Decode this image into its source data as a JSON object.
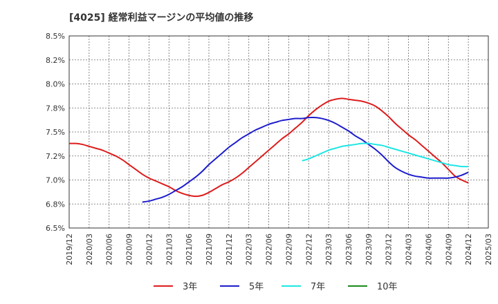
{
  "chart_data": {
    "type": "line",
    "title": "[4025]  経常利益マージンの平均値の推移",
    "xlabel": "",
    "ylabel": "",
    "y_ticks": [
      "6.5%",
      "6.8%",
      "7.0%",
      "7.2%",
      "7.5%",
      "7.8%",
      "8.0%",
      "8.2%",
      "8.5%"
    ],
    "ylim": [
      6.5,
      8.5
    ],
    "x_ticks": [
      "2019/12",
      "2020/03",
      "2020/06",
      "2020/09",
      "2020/12",
      "2021/03",
      "2021/06",
      "2021/09",
      "2021/12",
      "2022/03",
      "2022/06",
      "2022/09",
      "2022/12",
      "2023/03",
      "2023/06",
      "2023/09",
      "2023/12",
      "2024/03",
      "2024/06",
      "2024/09",
      "2024/12",
      "2025/03"
    ],
    "grid": true,
    "legend_position": "bottom",
    "series": [
      {
        "name": "3年",
        "color": "#dd1c1c",
        "points": [
          [
            "2019/12",
            7.38
          ],
          [
            "2020/01",
            7.38
          ],
          [
            "2020/02",
            7.37
          ],
          [
            "2020/03",
            7.35
          ],
          [
            "2020/04",
            7.33
          ],
          [
            "2020/05",
            7.31
          ],
          [
            "2020/06",
            7.28
          ],
          [
            "2020/07",
            7.25
          ],
          [
            "2020/08",
            7.21
          ],
          [
            "2020/09",
            7.16
          ],
          [
            "2020/10",
            7.11
          ],
          [
            "2020/11",
            7.06
          ],
          [
            "2020/12",
            7.02
          ],
          [
            "2021/01",
            6.99
          ],
          [
            "2021/02",
            6.96
          ],
          [
            "2021/03",
            6.93
          ],
          [
            "2021/04",
            6.89
          ],
          [
            "2021/05",
            6.86
          ],
          [
            "2021/06",
            6.84
          ],
          [
            "2021/07",
            6.83
          ],
          [
            "2021/08",
            6.84
          ],
          [
            "2021/09",
            6.87
          ],
          [
            "2021/10",
            6.91
          ],
          [
            "2021/11",
            6.95
          ],
          [
            "2021/12",
            6.98
          ],
          [
            "2022/01",
            7.02
          ],
          [
            "2022/02",
            7.07
          ],
          [
            "2022/03",
            7.13
          ],
          [
            "2022/04",
            7.19
          ],
          [
            "2022/05",
            7.25
          ],
          [
            "2022/06",
            7.31
          ],
          [
            "2022/07",
            7.37
          ],
          [
            "2022/08",
            7.43
          ],
          [
            "2022/09",
            7.48
          ],
          [
            "2022/10",
            7.54
          ],
          [
            "2022/11",
            7.6
          ],
          [
            "2022/12",
            7.67
          ],
          [
            "2023/01",
            7.73
          ],
          [
            "2023/02",
            7.78
          ],
          [
            "2023/03",
            7.82
          ],
          [
            "2023/04",
            7.84
          ],
          [
            "2023/05",
            7.85
          ],
          [
            "2023/06",
            7.84
          ],
          [
            "2023/07",
            7.83
          ],
          [
            "2023/08",
            7.82
          ],
          [
            "2023/09",
            7.8
          ],
          [
            "2023/10",
            7.77
          ],
          [
            "2023/11",
            7.72
          ],
          [
            "2023/12",
            7.66
          ],
          [
            "2024/01",
            7.59
          ],
          [
            "2024/02",
            7.53
          ],
          [
            "2024/03",
            7.47
          ],
          [
            "2024/04",
            7.42
          ],
          [
            "2024/05",
            7.36
          ],
          [
            "2024/06",
            7.3
          ],
          [
            "2024/07",
            7.24
          ],
          [
            "2024/08",
            7.18
          ],
          [
            "2024/09",
            7.11
          ],
          [
            "2024/10",
            7.04
          ],
          [
            "2024/11",
            7.0
          ],
          [
            "2024/12",
            6.97
          ]
        ]
      },
      {
        "name": "5年",
        "color": "#1c1ccc",
        "points": [
          [
            "2020/11",
            6.77
          ],
          [
            "2020/12",
            6.78
          ],
          [
            "2021/01",
            6.8
          ],
          [
            "2021/02",
            6.82
          ],
          [
            "2021/03",
            6.85
          ],
          [
            "2021/04",
            6.89
          ],
          [
            "2021/05",
            6.93
          ],
          [
            "2021/06",
            6.98
          ],
          [
            "2021/07",
            7.03
          ],
          [
            "2021/08",
            7.09
          ],
          [
            "2021/09",
            7.16
          ],
          [
            "2021/10",
            7.22
          ],
          [
            "2021/11",
            7.28
          ],
          [
            "2021/12",
            7.34
          ],
          [
            "2022/01",
            7.39
          ],
          [
            "2022/02",
            7.44
          ],
          [
            "2022/03",
            7.48
          ],
          [
            "2022/04",
            7.52
          ],
          [
            "2022/05",
            7.55
          ],
          [
            "2022/06",
            7.58
          ],
          [
            "2022/07",
            7.6
          ],
          [
            "2022/08",
            7.62
          ],
          [
            "2022/09",
            7.63
          ],
          [
            "2022/10",
            7.64
          ],
          [
            "2022/11",
            7.64
          ],
          [
            "2022/12",
            7.65
          ],
          [
            "2023/01",
            7.65
          ],
          [
            "2023/02",
            7.64
          ],
          [
            "2023/03",
            7.62
          ],
          [
            "2023/04",
            7.59
          ],
          [
            "2023/05",
            7.55
          ],
          [
            "2023/06",
            7.51
          ],
          [
            "2023/07",
            7.46
          ],
          [
            "2023/08",
            7.42
          ],
          [
            "2023/09",
            7.37
          ],
          [
            "2023/10",
            7.32
          ],
          [
            "2023/11",
            7.26
          ],
          [
            "2023/12",
            7.19
          ],
          [
            "2024/01",
            7.13
          ],
          [
            "2024/02",
            7.09
          ],
          [
            "2024/03",
            7.06
          ],
          [
            "2024/04",
            7.04
          ],
          [
            "2024/05",
            7.03
          ],
          [
            "2024/06",
            7.02
          ],
          [
            "2024/07",
            7.02
          ],
          [
            "2024/08",
            7.02
          ],
          [
            "2024/09",
            7.02
          ],
          [
            "2024/10",
            7.03
          ],
          [
            "2024/11",
            7.05
          ],
          [
            "2024/12",
            7.08
          ]
        ]
      },
      {
        "name": "7年",
        "color": "#1ce6e6",
        "points": [
          [
            "2022/11",
            7.2
          ],
          [
            "2022/12",
            7.22
          ],
          [
            "2023/01",
            7.25
          ],
          [
            "2023/02",
            7.28
          ],
          [
            "2023/03",
            7.31
          ],
          [
            "2023/04",
            7.33
          ],
          [
            "2023/05",
            7.35
          ],
          [
            "2023/06",
            7.36
          ],
          [
            "2023/07",
            7.37
          ],
          [
            "2023/08",
            7.38
          ],
          [
            "2023/09",
            7.38
          ],
          [
            "2023/10",
            7.37
          ],
          [
            "2023/11",
            7.36
          ],
          [
            "2023/12",
            7.34
          ],
          [
            "2024/01",
            7.32
          ],
          [
            "2024/02",
            7.3
          ],
          [
            "2024/03",
            7.28
          ],
          [
            "2024/04",
            7.26
          ],
          [
            "2024/05",
            7.24
          ],
          [
            "2024/06",
            7.22
          ],
          [
            "2024/07",
            7.2
          ],
          [
            "2024/08",
            7.18
          ],
          [
            "2024/09",
            7.16
          ],
          [
            "2024/10",
            7.15
          ],
          [
            "2024/11",
            7.14
          ],
          [
            "2024/12",
            7.14
          ]
        ]
      },
      {
        "name": "10年",
        "color": "#1c8a1c",
        "points": []
      }
    ]
  }
}
